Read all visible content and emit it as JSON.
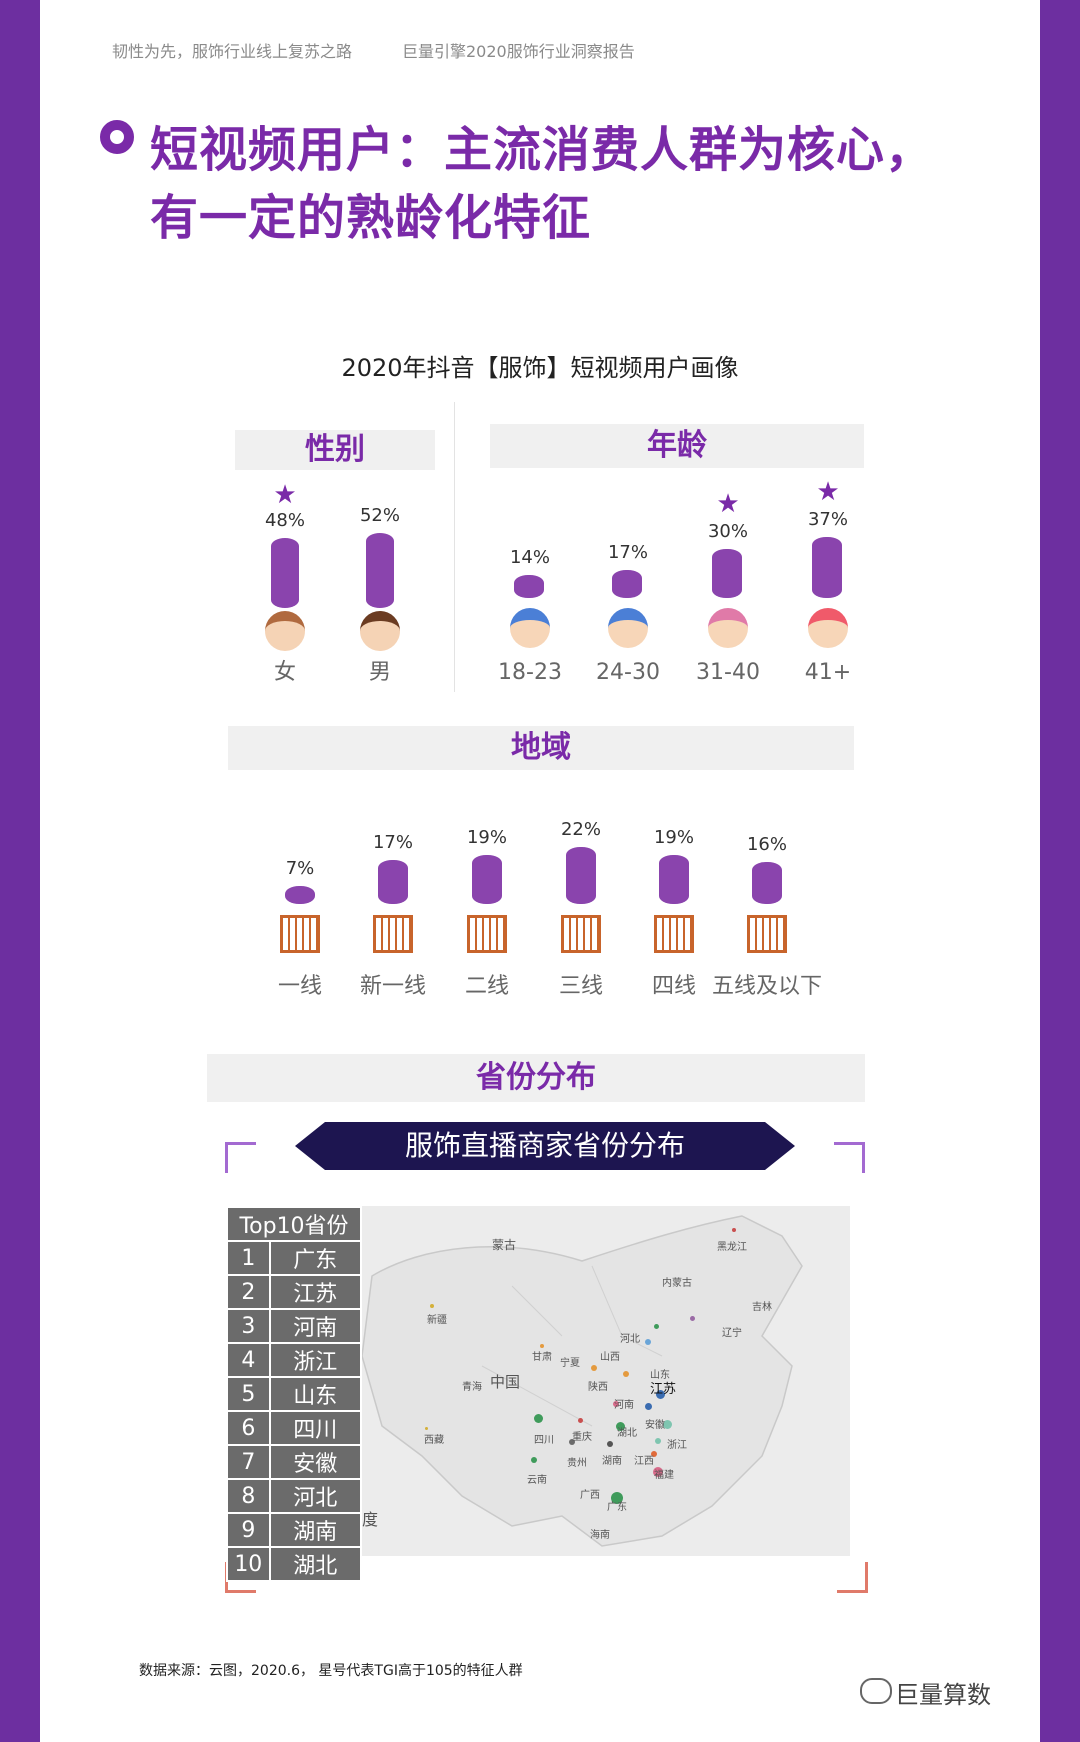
{
  "header": {
    "left": "韧性为先，服饰行业线上复苏之路",
    "right": "巨量引擎2020服饰行业洞察报告"
  },
  "title": {
    "line1": "短视频用户：主流消费人群为核心，",
    "line2": "有一定的熟龄化特征"
  },
  "subtitle": "2020年抖音【服饰】短视频用户画像",
  "gender": {
    "heading": "性别",
    "items": [
      {
        "label": "女",
        "pct": "48%",
        "value": 48,
        "star": true
      },
      {
        "label": "男",
        "pct": "52%",
        "value": 52,
        "star": false
      }
    ]
  },
  "age": {
    "heading": "年龄",
    "items": [
      {
        "label": "18-23",
        "pct": "14%",
        "value": 14,
        "star": false
      },
      {
        "label": "24-30",
        "pct": "17%",
        "value": 17,
        "star": false
      },
      {
        "label": "31-40",
        "pct": "30%",
        "value": 30,
        "star": true
      },
      {
        "label": "41+",
        "pct": "37%",
        "value": 37,
        "star": true
      }
    ]
  },
  "region": {
    "heading": "地域",
    "items": [
      {
        "label": "一线",
        "pct": "7%",
        "value": 7
      },
      {
        "label": "新一线",
        "pct": "17%",
        "value": 17
      },
      {
        "label": "二线",
        "pct": "19%",
        "value": 19
      },
      {
        "label": "三线",
        "pct": "22%",
        "value": 22
      },
      {
        "label": "四线",
        "pct": "19%",
        "value": 19
      },
      {
        "label": "五线及以下",
        "pct": "16%",
        "value": 16
      }
    ]
  },
  "province": {
    "heading": "省份分布",
    "banner": "服饰直播商家省份分布",
    "table_header": "Top10省份",
    "rows": [
      {
        "rank": "1",
        "name": "广东"
      },
      {
        "rank": "2",
        "name": "江苏"
      },
      {
        "rank": "3",
        "name": "河南"
      },
      {
        "rank": "4",
        "name": "浙江"
      },
      {
        "rank": "5",
        "name": "山东"
      },
      {
        "rank": "6",
        "name": "四川"
      },
      {
        "rank": "7",
        "name": "安徽"
      },
      {
        "rank": "8",
        "name": "河北"
      },
      {
        "rank": "9",
        "name": "湖南"
      },
      {
        "rank": "10",
        "name": "湖北"
      }
    ],
    "map_labels": {
      "mongolia": "蒙古",
      "china": "中国",
      "jiangsu": "江苏",
      "heilongjiang": "黑龙江",
      "neimenggu": "内蒙古",
      "jilin": "吉林",
      "xinjiang": "新疆",
      "liaoning": "辽宁",
      "hebei": "河北",
      "gansu": "甘肃",
      "ningxia": "宁夏",
      "shanxi": "山西",
      "qinghai": "青海",
      "shaanxi": "陕西",
      "shandong": "山东",
      "henan": "河南",
      "xizang": "西藏",
      "sichuan": "四川",
      "chongqing": "重庆",
      "hubei": "湖北",
      "anhui": "安徽",
      "zhejiang": "浙江",
      "guizhou": "贵州",
      "hunan": "湖南",
      "jiangxi": "江西",
      "fujian": "福建",
      "yunnan": "云南",
      "guangxi": "广西",
      "guangdong": "广东",
      "hainan": "海南",
      "ind": "度"
    }
  },
  "footer": {
    "source": "数据来源：云图，2020.6， 星号代表TGI高于105的特征人群",
    "watermark": "巨量算数"
  },
  "colors": {
    "accent": "#7a2aa8",
    "bar": "#8a44ad",
    "border": "#6d2fa0",
    "building": "#c8642b"
  }
}
